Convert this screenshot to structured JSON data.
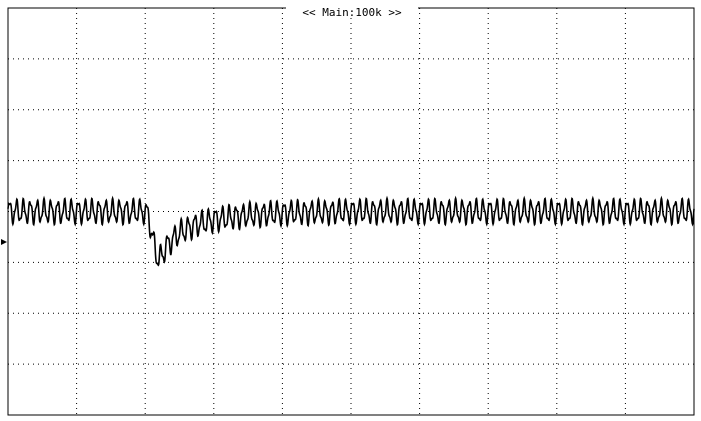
{
  "screen": {
    "header_label": "<< Main:100k >>"
  },
  "chart_data": {
    "type": "line",
    "title": "",
    "xlabel": "",
    "ylabel": "",
    "grid": true,
    "x_divisions": 10,
    "y_divisions": 8,
    "xlim": [
      0,
      10
    ],
    "ylim": [
      -4,
      4
    ],
    "ripple_amplitude": 0.2,
    "ripple_cycles_per_division": 10,
    "series": [
      {
        "color": "#000000",
        "x": [
          0,
          0.5,
          1,
          1.5,
          2.0,
          2.05,
          2.1,
          2.15,
          2.2,
          2.25,
          2.3,
          2.4,
          2.5,
          2.7,
          3.0,
          3.5,
          4,
          5,
          6,
          7,
          8,
          9,
          10
        ],
        "y": [
          0.0,
          0.0,
          0.0,
          0.0,
          0.0,
          -0.1,
          -0.45,
          -0.8,
          -0.95,
          -0.85,
          -0.7,
          -0.55,
          -0.42,
          -0.28,
          -0.16,
          -0.07,
          -0.03,
          0.0,
          0.0,
          0.0,
          0.0,
          0.0,
          0.0
        ]
      }
    ]
  }
}
